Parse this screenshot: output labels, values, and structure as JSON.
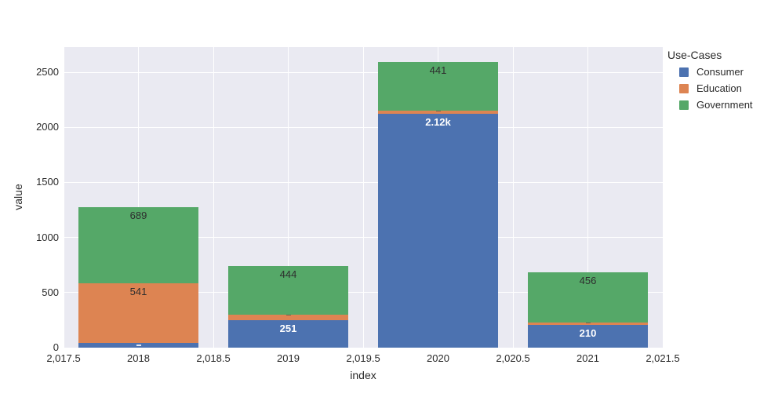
{
  "chart_data": {
    "type": "bar",
    "stacked": true,
    "title": "",
    "xlabel": "index",
    "ylabel": "value",
    "legend_title": "Use-Cases",
    "legend_position": "top-right",
    "grid": true,
    "categories": [
      2018,
      2019,
      2020,
      2021
    ],
    "series": [
      {
        "name": "Consumer",
        "color": "#4C72B0",
        "values": [
          46,
          251,
          2120,
          210
        ],
        "bar_labels": [
          "",
          "251",
          "2.12k",
          "210"
        ]
      },
      {
        "name": "Education",
        "color": "#DD8452",
        "values": [
          541,
          45,
          30,
          20
        ],
        "bar_labels": [
          "541",
          "",
          "",
          ""
        ]
      },
      {
        "name": "Government",
        "color": "#55A868",
        "values": [
          689,
          444,
          441,
          456
        ],
        "bar_labels": [
          "689",
          "444",
          "441",
          "456"
        ]
      }
    ],
    "bar_width": 0.8,
    "xlim": [
      2017.5,
      2021.5
    ],
    "ylim": [
      0,
      2728
    ],
    "x_ticks": [
      {
        "value": 2017.5,
        "label": "2,017.5"
      },
      {
        "value": 2018,
        "label": "2018"
      },
      {
        "value": 2018.5,
        "label": "2,018.5"
      },
      {
        "value": 2019,
        "label": "2019"
      },
      {
        "value": 2019.5,
        "label": "2,019.5"
      },
      {
        "value": 2020,
        "label": "2020"
      },
      {
        "value": 2020.5,
        "label": "2,020.5"
      },
      {
        "value": 2021,
        "label": "2021"
      },
      {
        "value": 2021.5,
        "label": "2,021.5"
      }
    ],
    "y_ticks": [
      {
        "value": 0,
        "label": "0"
      },
      {
        "value": 500,
        "label": "500"
      },
      {
        "value": 1000,
        "label": "1000"
      },
      {
        "value": 1500,
        "label": "1500"
      },
      {
        "value": 2000,
        "label": "2000"
      },
      {
        "value": 2500,
        "label": "2500"
      }
    ],
    "colors": {
      "plot_bg": "#EAEAF2",
      "grid": "#FFFFFF",
      "text": "#2A2A2A",
      "inside_label_light": "#FFFFFF",
      "inside_label_dark": "#2E2E2E"
    }
  }
}
